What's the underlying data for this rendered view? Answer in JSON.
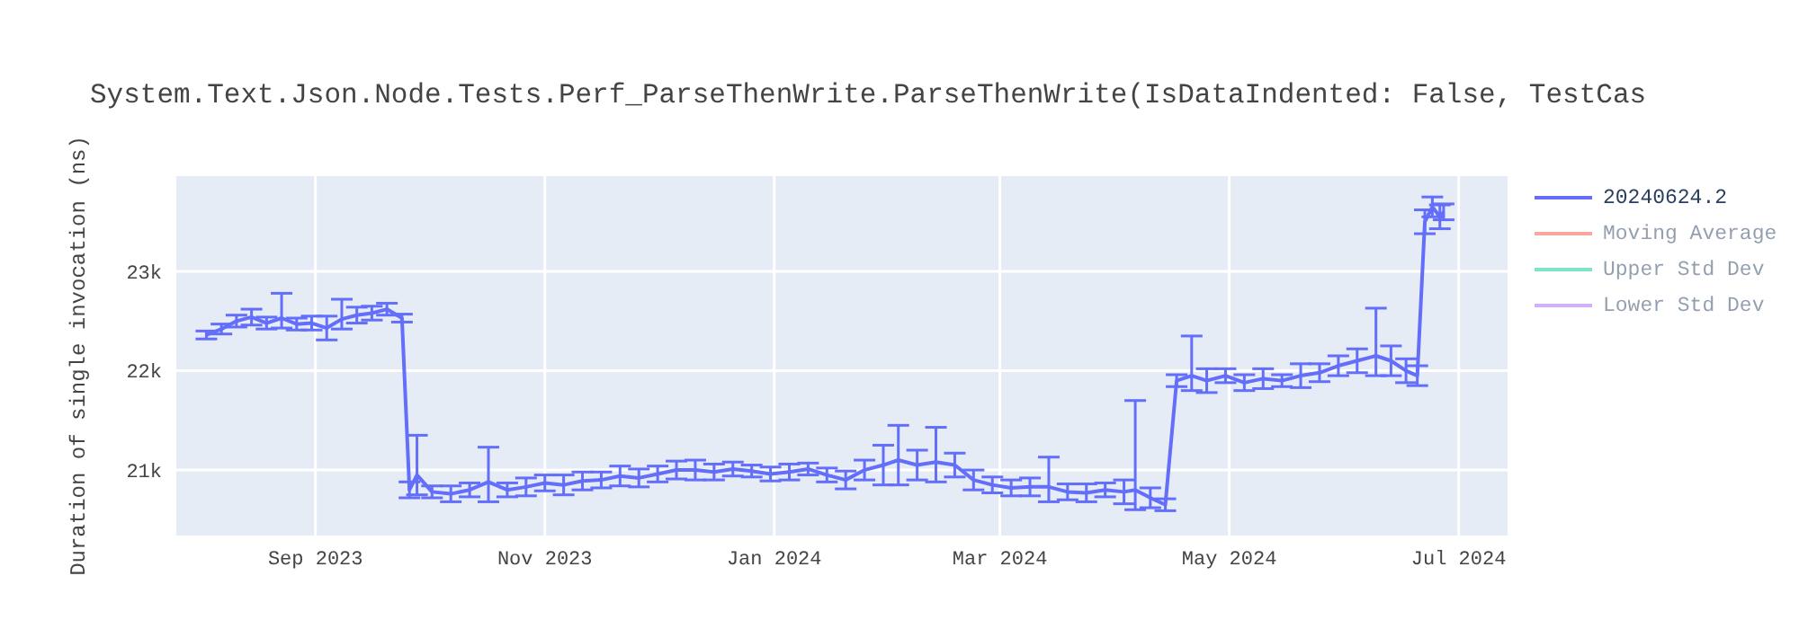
{
  "chart_data": {
    "type": "line",
    "title": "System.Text.Json.Node.Tests.Perf_ParseThenWrite.ParseThenWrite(IsDataIndented: False, TestCas",
    "ylabel": "Duration of single invocation (ns)",
    "x": [
      "2023-08-03",
      "2023-08-07",
      "2023-08-11",
      "2023-08-15",
      "2023-08-19",
      "2023-08-23",
      "2023-08-27",
      "2023-08-31",
      "2023-09-04",
      "2023-09-08",
      "2023-09-12",
      "2023-09-16",
      "2023-09-20",
      "2023-09-24",
      "2023-09-26",
      "2023-09-28",
      "2023-10-02",
      "2023-10-07",
      "2023-10-12",
      "2023-10-17",
      "2023-10-22",
      "2023-10-27",
      "2023-11-01",
      "2023-11-06",
      "2023-11-11",
      "2023-11-16",
      "2023-11-21",
      "2023-11-26",
      "2023-12-01",
      "2023-12-06",
      "2023-12-11",
      "2023-12-16",
      "2023-12-21",
      "2023-12-26",
      "2023-12-31",
      "2024-01-05",
      "2024-01-10",
      "2024-01-15",
      "2024-01-20",
      "2024-01-25",
      "2024-01-30",
      "2024-02-03",
      "2024-02-08",
      "2024-02-13",
      "2024-02-18",
      "2024-02-23",
      "2024-02-28",
      "2024-03-04",
      "2024-03-09",
      "2024-03-14",
      "2024-03-19",
      "2024-03-24",
      "2024-03-29",
      "2024-04-03",
      "2024-04-06",
      "2024-04-10",
      "2024-04-14",
      "2024-04-17",
      "2024-04-21",
      "2024-04-25",
      "2024-04-30",
      "2024-05-05",
      "2024-05-10",
      "2024-05-15",
      "2024-05-20",
      "2024-05-25",
      "2024-05-30",
      "2024-06-04",
      "2024-06-09",
      "2024-06-13",
      "2024-06-17",
      "2024-06-20",
      "2024-06-22",
      "2024-06-24",
      "2024-06-26",
      "2024-06-27"
    ],
    "series": [
      {
        "name": "20240624.2",
        "color": "#636efa",
        "values": [
          22360,
          22420,
          22500,
          22540,
          22480,
          22530,
          22470,
          22480,
          22430,
          22520,
          22560,
          22580,
          22620,
          22530,
          20800,
          20950,
          20780,
          20760,
          20800,
          20880,
          20800,
          20830,
          20870,
          20850,
          20890,
          20900,
          20940,
          20920,
          20960,
          21000,
          21000,
          20980,
          21010,
          20990,
          20960,
          20980,
          21010,
          20950,
          20900,
          21000,
          21050,
          21100,
          21050,
          21080,
          21050,
          20900,
          20850,
          20820,
          20830,
          20830,
          20780,
          20770,
          20800,
          20780,
          20800,
          20720,
          20650,
          21900,
          21950,
          21900,
          21950,
          21880,
          21920,
          21900,
          21950,
          21980,
          22050,
          22100,
          22150,
          22100,
          22000,
          21950,
          23500,
          23650,
          23550,
          23600
        ],
        "errors": [
          40,
          50,
          60,
          80,
          60,
          [
            22430,
            22780
          ],
          60,
          70,
          120,
          [
            22420,
            22720
          ],
          80,
          70,
          60,
          40,
          80,
          [
            20750,
            21350
          ],
          60,
          80,
          70,
          [
            20680,
            21230
          ],
          70,
          90,
          80,
          100,
          90,
          80,
          100,
          90,
          80,
          90,
          100,
          80,
          70,
          60,
          70,
          80,
          60,
          70,
          90,
          100,
          200,
          [
            20850,
            21450
          ],
          150,
          [
            20880,
            21430
          ],
          120,
          100,
          80,
          80,
          90,
          [
            20680,
            21130
          ],
          80,
          90,
          70,
          120,
          [
            20600,
            21700
          ],
          100,
          60,
          60,
          [
            21800,
            22350
          ],
          120,
          70,
          80,
          100,
          60,
          120,
          90,
          100,
          120,
          [
            21950,
            22630
          ],
          150,
          120,
          100,
          120,
          100,
          120,
          80
        ]
      },
      {
        "name": "Moving Average",
        "color": "#ef553b",
        "values": [
          null,
          null,
          null,
          null,
          null,
          null,
          null,
          null,
          null,
          null,
          null,
          null,
          null,
          null,
          null,
          null,
          null,
          null,
          null,
          null,
          null,
          null,
          null,
          null,
          null,
          null,
          null,
          null,
          null,
          null,
          null,
          null,
          null,
          null,
          null,
          null,
          null,
          null,
          null,
          null,
          null,
          null,
          null,
          null,
          null,
          null,
          null,
          null,
          null,
          null,
          null,
          null,
          null,
          null,
          null,
          null,
          null,
          null,
          null,
          null,
          null,
          null,
          null,
          null,
          null,
          null,
          null,
          null,
          null,
          null,
          null,
          null,
          null,
          null,
          null,
          null
        ]
      },
      {
        "name": "Upper Std Dev",
        "color": "#00cc96",
        "values": [
          null,
          null,
          null,
          null,
          null,
          null,
          null,
          null,
          null,
          null,
          null,
          null,
          null,
          null,
          null,
          null,
          null,
          null,
          null,
          null,
          null,
          null,
          null,
          null,
          null,
          null,
          null,
          null,
          null,
          null,
          null,
          null,
          null,
          null,
          null,
          null,
          null,
          null,
          null,
          null,
          null,
          null,
          null,
          null,
          null,
          null,
          null,
          null,
          null,
          null,
          null,
          null,
          null,
          null,
          null,
          null,
          null,
          null,
          null,
          null,
          null,
          null,
          null,
          null,
          null,
          null,
          null,
          null,
          null,
          null,
          null,
          null,
          null,
          null,
          null,
          null
        ]
      },
      {
        "name": "Lower Std Dev",
        "color": "#ab63fa",
        "values": [
          null,
          null,
          null,
          null,
          null,
          null,
          null,
          null,
          null,
          null,
          null,
          null,
          null,
          null,
          null,
          null,
          null,
          null,
          null,
          null,
          null,
          null,
          null,
          null,
          null,
          null,
          null,
          null,
          null,
          null,
          null,
          null,
          null,
          null,
          null,
          null,
          null,
          null,
          null,
          null,
          null,
          null,
          null,
          null,
          null,
          null,
          null,
          null,
          null,
          null,
          null,
          null,
          null,
          null,
          null,
          null,
          null,
          null,
          null,
          null,
          null,
          null,
          null,
          null,
          null,
          null,
          null,
          null,
          null,
          null,
          null,
          null,
          null,
          null,
          null,
          null
        ]
      }
    ],
    "xlim": [
      "2023-07-26",
      "2024-07-14"
    ],
    "xticks": [
      {
        "value": "2023-09-01",
        "label": "Sep 2023"
      },
      {
        "value": "2023-11-01",
        "label": "Nov 2023"
      },
      {
        "value": "2024-01-01",
        "label": "Jan 2024"
      },
      {
        "value": "2024-03-01",
        "label": "Mar 2024"
      },
      {
        "value": "2024-05-01",
        "label": "May 2024"
      },
      {
        "value": "2024-07-01",
        "label": "Jul 2024"
      }
    ],
    "ylim": [
      20340,
      23960
    ],
    "yticks": [
      {
        "value": 21000,
        "label": "21k"
      },
      {
        "value": 22000,
        "label": "22k"
      },
      {
        "value": 23000,
        "label": "23k"
      }
    ],
    "grid": true,
    "legend": "top right"
  }
}
